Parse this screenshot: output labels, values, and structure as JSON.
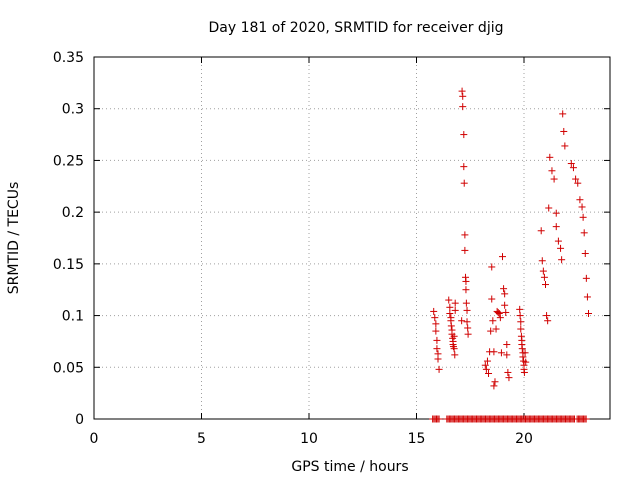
{
  "chart_data": {
    "type": "scatter",
    "title": "Day 181 of 2020, SRMTID for receiver djig",
    "xlabel": "GPS time / hours",
    "ylabel": "SRMTID / TECUs",
    "xlim": [
      0,
      24
    ],
    "ylim": [
      0,
      0.35
    ],
    "xticks": [
      0,
      5,
      10,
      15,
      20
    ],
    "yticks": [
      0,
      0.05,
      0.1,
      0.15,
      0.2,
      0.25,
      0.3,
      0.35
    ],
    "xtick_labels": [
      "0",
      "5",
      "10",
      "15",
      "20"
    ],
    "ytick_labels": [
      "0",
      "0.05",
      "0.1",
      "0.15",
      "0.2",
      "0.25",
      "0.3",
      "0.35"
    ],
    "grid": true,
    "marker": "+",
    "marker_color": "#d00000",
    "series": [
      {
        "x": [
          15.8,
          15.85,
          15.9,
          15.9,
          15.95,
          15.95,
          16.0,
          16.0,
          16.05,
          16.5,
          16.55,
          16.55,
          16.6,
          16.6,
          16.62,
          16.65,
          16.65,
          16.68,
          16.7,
          16.7,
          16.72,
          16.75,
          16.75,
          16.78,
          16.8,
          16.8,
          17.1,
          17.12,
          17.15,
          17.15,
          17.2,
          17.2,
          17.22,
          17.25,
          17.25,
          17.28,
          17.3,
          17.3,
          17.32,
          17.35,
          17.35,
          17.38,
          17.4,
          18.2,
          18.25,
          18.3,
          18.35,
          18.4,
          18.45,
          18.5,
          18.5,
          18.55,
          18.6,
          18.6,
          18.65,
          18.7,
          18.75,
          18.8,
          18.85,
          18.9,
          18.95,
          19.0,
          19.05,
          19.1,
          19.1,
          19.15,
          19.2,
          19.2,
          19.25,
          19.3,
          19.8,
          19.82,
          19.85,
          19.85,
          19.88,
          19.9,
          19.9,
          19.92,
          19.95,
          19.95,
          19.98,
          20.0,
          20.0,
          20.02,
          20.05,
          20.08,
          20.8,
          20.85,
          20.9,
          20.95,
          21.0,
          21.05,
          21.1,
          21.15,
          21.2,
          21.3,
          21.4,
          21.5,
          21.5,
          21.6,
          21.7,
          21.75,
          21.8,
          21.85,
          21.9,
          22.2,
          22.3,
          22.4,
          22.5,
          22.6,
          22.7,
          22.75,
          22.8,
          22.85,
          22.9,
          22.95,
          23.0
        ],
        "y": [
          0.104,
          0.098,
          0.092,
          0.085,
          0.076,
          0.068,
          0.063,
          0.058,
          0.048,
          0.115,
          0.108,
          0.102,
          0.098,
          0.095,
          0.09,
          0.086,
          0.082,
          0.078,
          0.075,
          0.072,
          0.07,
          0.068,
          0.08,
          0.062,
          0.112,
          0.105,
          0.095,
          0.317,
          0.312,
          0.302,
          0.275,
          0.244,
          0.228,
          0.178,
          0.163,
          0.137,
          0.133,
          0.125,
          0.112,
          0.105,
          0.094,
          0.088,
          0.082,
          0.052,
          0.048,
          0.056,
          0.044,
          0.065,
          0.085,
          0.147,
          0.116,
          0.095,
          0.065,
          0.032,
          0.036,
          0.087,
          0.104,
          0.103,
          0.102,
          0.098,
          0.064,
          0.157,
          0.126,
          0.121,
          0.11,
          0.103,
          0.072,
          0.062,
          0.045,
          0.04,
          0.106,
          0.1,
          0.094,
          0.087,
          0.08,
          0.076,
          0.072,
          0.068,
          0.064,
          0.06,
          0.056,
          0.052,
          0.048,
          0.045,
          0.064,
          0.055,
          0.182,
          0.153,
          0.143,
          0.137,
          0.13,
          0.1,
          0.095,
          0.204,
          0.253,
          0.24,
          0.232,
          0.199,
          0.186,
          0.172,
          0.165,
          0.154,
          0.295,
          0.278,
          0.264,
          0.247,
          0.243,
          0.232,
          0.228,
          0.212,
          0.205,
          0.195,
          0.18,
          0.16,
          0.136,
          0.118,
          0.102
        ],
        "baseline_x_range": [
          15.75,
          22.9
        ],
        "baseline_y": 0
      }
    ]
  }
}
